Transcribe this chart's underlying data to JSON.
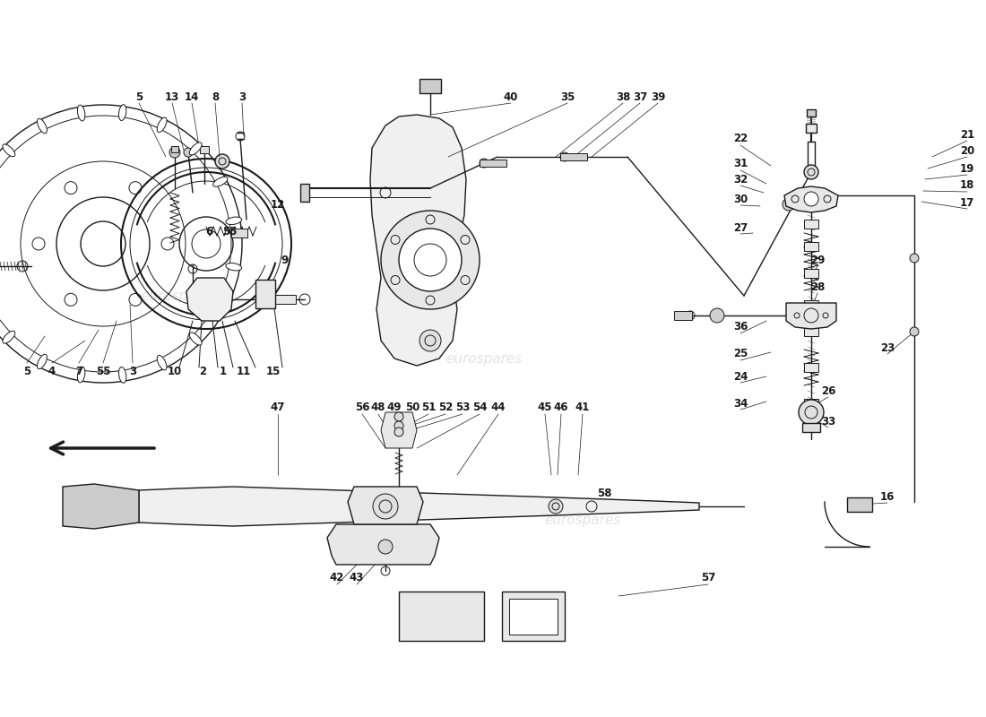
{
  "bg_color": "#ffffff",
  "line_color": "#1a1a1a",
  "gray_fill": "#e8e8e8",
  "light_fill": "#f5f5f5",
  "fig_width": 11.0,
  "fig_height": 8.0,
  "dpi": 100,
  "watermark_color": "#cccccc",
  "labels_top_left_above": [
    [
      "5",
      155,
      108
    ],
    [
      "13",
      192,
      108
    ],
    [
      "14",
      214,
      108
    ],
    [
      "8",
      240,
      108
    ],
    [
      "3",
      270,
      108
    ]
  ],
  "labels_top_left_below": [
    [
      "5",
      30,
      415
    ],
    [
      "4",
      58,
      415
    ],
    [
      "7",
      88,
      415
    ],
    [
      "55",
      115,
      415
    ],
    [
      "3",
      148,
      415
    ]
  ],
  "labels_top_left_right": [
    [
      "6",
      233,
      258
    ],
    [
      "55",
      256,
      258
    ],
    [
      "12",
      310,
      228
    ],
    [
      "9",
      318,
      290
    ],
    [
      "10",
      195,
      415
    ],
    [
      "2",
      226,
      415
    ],
    [
      "1",
      249,
      415
    ],
    [
      "11",
      272,
      415
    ],
    [
      "15",
      305,
      415
    ]
  ],
  "labels_center_top": [
    [
      "40",
      570,
      108
    ],
    [
      "35",
      633,
      108
    ],
    [
      "38",
      695,
      108
    ],
    [
      "37",
      714,
      108
    ],
    [
      "39",
      734,
      108
    ]
  ],
  "labels_right": [
    [
      "22",
      826,
      155
    ],
    [
      "31",
      826,
      183
    ],
    [
      "32",
      826,
      200
    ],
    [
      "30",
      826,
      222
    ],
    [
      "27",
      826,
      254
    ],
    [
      "29",
      912,
      290
    ],
    [
      "28",
      912,
      320
    ],
    [
      "36",
      826,
      365
    ],
    [
      "25",
      826,
      395
    ],
    [
      "24",
      826,
      420
    ],
    [
      "34",
      826,
      450
    ],
    [
      "26",
      924,
      436
    ],
    [
      "33",
      924,
      470
    ],
    [
      "23",
      990,
      388
    ],
    [
      "16",
      990,
      554
    ],
    [
      "21",
      1079,
      150
    ],
    [
      "20",
      1079,
      168
    ],
    [
      "19",
      1079,
      188
    ],
    [
      "18",
      1079,
      207
    ],
    [
      "17",
      1079,
      226
    ]
  ],
  "labels_bottom": [
    [
      "47",
      310,
      455
    ],
    [
      "56",
      404,
      455
    ],
    [
      "48",
      422,
      455
    ],
    [
      "49",
      440,
      455
    ],
    [
      "50",
      460,
      455
    ],
    [
      "51",
      478,
      455
    ],
    [
      "52",
      497,
      455
    ],
    [
      "53",
      516,
      455
    ],
    [
      "54",
      535,
      455
    ],
    [
      "44",
      556,
      455
    ],
    [
      "45",
      608,
      455
    ],
    [
      "46",
      626,
      455
    ],
    [
      "41",
      650,
      455
    ],
    [
      "42",
      376,
      645
    ],
    [
      "43",
      398,
      645
    ],
    [
      "58",
      674,
      550
    ],
    [
      "57",
      790,
      645
    ]
  ]
}
